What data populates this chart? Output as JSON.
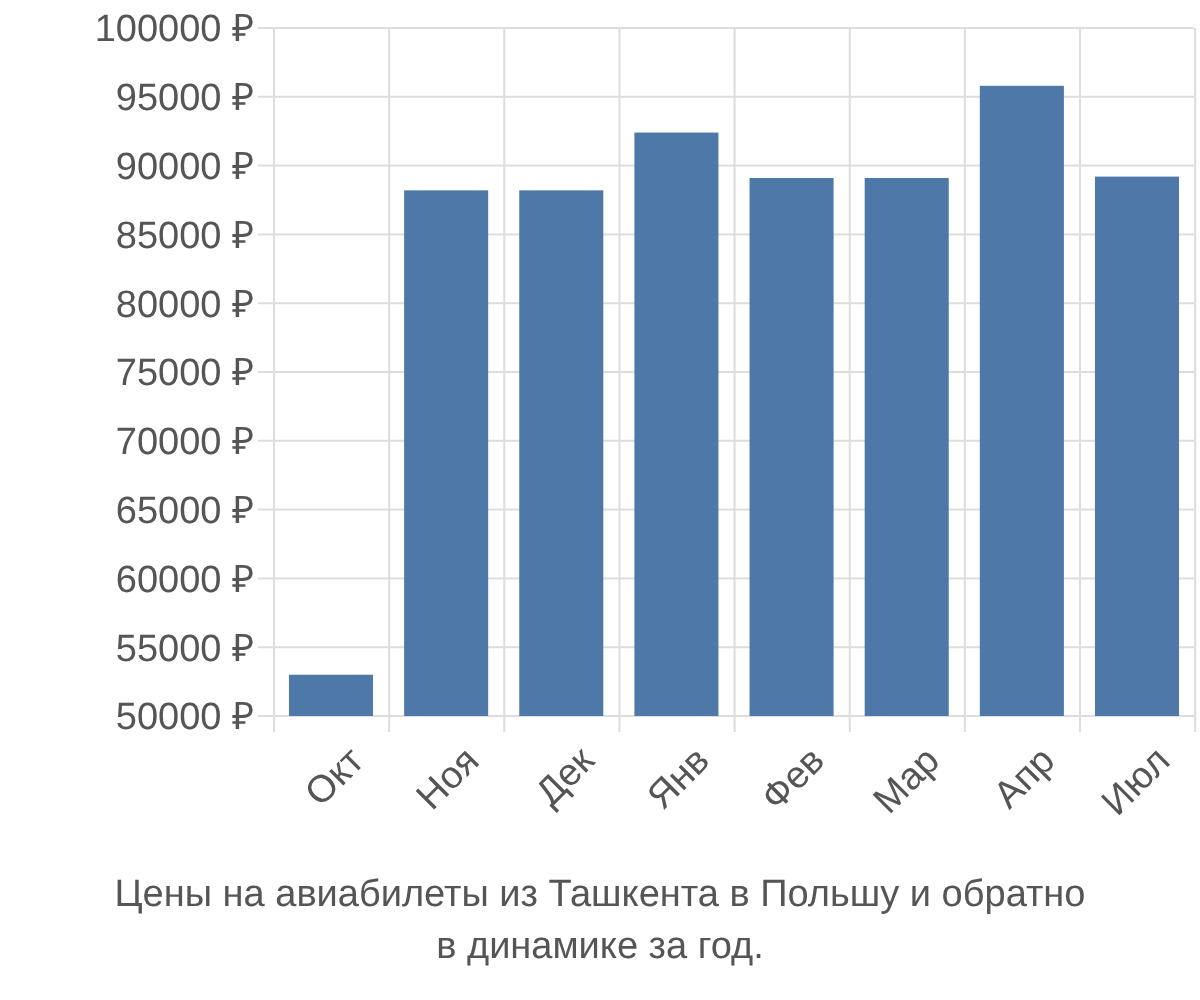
{
  "chart_data": {
    "type": "bar",
    "categories": [
      "Окт",
      "Ноя",
      "Дек",
      "Янв",
      "Фев",
      "Мар",
      "Апр",
      "Июл"
    ],
    "values": [
      53000,
      88200,
      88200,
      92400,
      89100,
      89100,
      95800,
      89200
    ],
    "color": "#4d78a8",
    "ylim": [
      50000,
      100000
    ],
    "yticks": [
      {
        "value": 50000,
        "label": "50000 ₽"
      },
      {
        "value": 55000,
        "label": "55000 ₽"
      },
      {
        "value": 60000,
        "label": "60000 ₽"
      },
      {
        "value": 65000,
        "label": "65000 ₽"
      },
      {
        "value": 70000,
        "label": "70000 ₽"
      },
      {
        "value": 75000,
        "label": "75000 ₽"
      },
      {
        "value": 80000,
        "label": "80000 ₽"
      },
      {
        "value": 85000,
        "label": "85000 ₽"
      },
      {
        "value": 90000,
        "label": "90000 ₽"
      },
      {
        "value": 95000,
        "label": "95000 ₽"
      },
      {
        "value": 100000,
        "label": "100000 ₽"
      }
    ],
    "grid": true,
    "annotations": [
      "Цены на авиабилеты из Ташкента в Польшу и обратно",
      "в динамике за год."
    ]
  }
}
